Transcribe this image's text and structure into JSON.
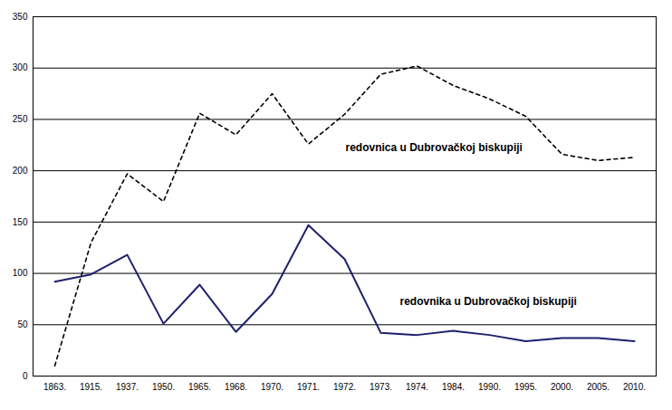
{
  "chart_data": {
    "type": "line",
    "categories": [
      "1863.",
      "1915.",
      "1937.",
      "1950.",
      "1965.",
      "1968.",
      "1970.",
      "1971.",
      "1972.",
      "1973.",
      "1974.",
      "1984.",
      "1990.",
      "1995.",
      "2000.",
      "2005.",
      "2010."
    ],
    "series": [
      {
        "name": "redovnica u Dubrovačkoj biskupiji",
        "color": "#000000",
        "line_style": "dashed",
        "values": [
          10,
          130,
          197,
          170,
          256,
          235,
          275,
          226,
          255,
          294,
          302,
          283,
          270,
          253,
          216,
          210,
          213
        ]
      },
      {
        "name": "redovnika u Dubrovačkoj biskupiji",
        "color": "#1f1f6e",
        "line_style": "solid",
        "values": [
          92,
          99,
          118,
          51,
          89,
          43,
          80,
          147,
          114,
          42,
          40,
          44,
          40,
          34,
          37,
          37,
          34
        ]
      }
    ],
    "ylim": [
      0,
      350
    ],
    "yticks": [
      0,
      50,
      100,
      150,
      200,
      250,
      300,
      350
    ],
    "grid": true
  }
}
